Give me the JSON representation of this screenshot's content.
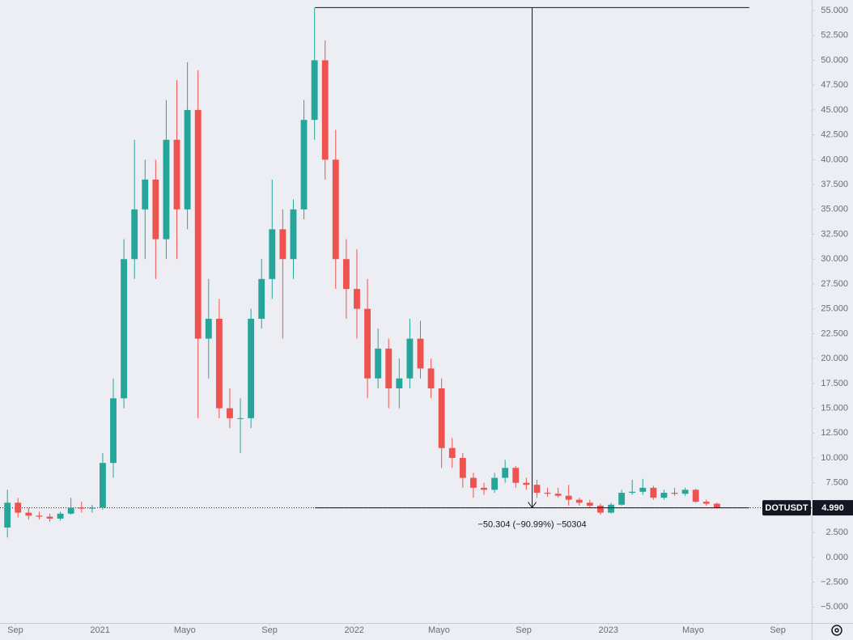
{
  "chart_data": {
    "type": "candlestick",
    "symbol": "DOTUSDT",
    "up_color": "#26a69a",
    "down_color": "#ef5350",
    "grid": false,
    "x": [
      -0.75,
      0.25,
      1.25,
      2.25,
      3.25,
      4.25,
      5.25,
      6.25,
      7.25,
      8.25,
      9.25,
      10.25,
      11.25,
      12.25,
      13.25,
      14.25,
      15.25,
      16.25,
      17.25,
      18.25,
      19.25,
      20.25,
      21.25,
      22.25,
      23.25,
      24.25,
      25.25,
      26.25,
      27.25,
      28.25,
      29.25,
      30.25,
      31.25,
      32.25,
      33.25,
      34.25,
      35.25,
      36.25,
      37.25,
      38.25,
      39.25,
      40.25,
      41.25,
      42.25,
      43.25,
      44.25,
      45.25,
      46.25,
      47.25,
      48.25,
      49.25,
      50.25,
      51.25,
      52.25,
      53.25,
      54.25,
      55.25,
      56.25,
      57.25,
      58.25,
      59.25,
      60.25,
      61.25,
      62.25,
      63.25,
      64.25,
      65.25,
      66.25
    ],
    "open": [
      3.0,
      5.5,
      4.5,
      4.2,
      4.1,
      3.9,
      4.4,
      5.0,
      4.9,
      5.0,
      9.5,
      16,
      30,
      35,
      38,
      32,
      42,
      35,
      45,
      22,
      24,
      15,
      14,
      14,
      24,
      28,
      33,
      30,
      35,
      44,
      50,
      40,
      30,
      27,
      25,
      18,
      21,
      17,
      18,
      22,
      19,
      17,
      11,
      10,
      8,
      7,
      6.8,
      8,
      9,
      7.5,
      7.3,
      6.5,
      6.4,
      6.2,
      5.8,
      5.5,
      5.2,
      4.5,
      5.3,
      6.5,
      6.6,
      7.0,
      6.0,
      6.5,
      6.4,
      6.8,
      5.6,
      5.4
    ],
    "high": [
      6.8,
      6.0,
      5.0,
      4.6,
      4.4,
      4.6,
      6.0,
      5.6,
      5.3,
      10.5,
      18,
      32,
      42,
      40,
      40,
      46,
      48,
      49.8,
      49,
      28,
      26,
      17,
      16,
      25,
      30,
      38,
      35,
      36,
      46,
      55.3,
      52,
      43,
      32,
      31,
      28,
      23,
      22,
      20,
      24,
      23.8,
      20,
      18,
      12,
      10.5,
      8.5,
      7.5,
      8.5,
      9.8,
      9.2,
      8,
      7.8,
      7,
      7,
      7.3,
      6,
      5.8,
      5.4,
      5.5,
      6.8,
      7.8,
      7.9,
      7.2,
      6.8,
      7.0,
      7.0,
      6.9,
      5.8,
      5.5
    ],
    "low": [
      2.0,
      4.0,
      3.8,
      3.8,
      3.6,
      3.7,
      4.3,
      4.5,
      4.5,
      4.8,
      8,
      15,
      28,
      30,
      28,
      30,
      30,
      33,
      14,
      18,
      14,
      13,
      10.5,
      13,
      23,
      26,
      22,
      28,
      34,
      42,
      38,
      27,
      24,
      22,
      16,
      17,
      15,
      15,
      17,
      18,
      16,
      9,
      9,
      7,
      6,
      6.3,
      6.5,
      7.5,
      7,
      6.8,
      6,
      6.1,
      6,
      5.2,
      5.2,
      5,
      4.3,
      4.4,
      5.2,
      6.3,
      6.3,
      5.8,
      5.8,
      6.2,
      6.2,
      5.5,
      5.2,
      4.9
    ],
    "close": [
      5.5,
      4.5,
      4.2,
      4.1,
      3.9,
      4.4,
      5.0,
      4.9,
      5.0,
      9.5,
      16,
      30,
      35,
      38,
      32,
      42,
      35,
      45,
      22,
      24,
      15,
      14,
      14,
      24,
      28,
      33,
      30,
      35,
      44,
      50,
      40,
      30,
      27,
      25,
      18,
      21,
      17,
      18,
      22,
      19,
      17,
      11,
      10,
      8,
      7,
      6.8,
      8,
      9,
      7.5,
      7.3,
      6.5,
      6.4,
      6.2,
      5.8,
      5.5,
      5.2,
      4.5,
      5.3,
      6.5,
      6.6,
      7.0,
      6.0,
      6.5,
      6.4,
      6.8,
      5.6,
      5.4,
      4.99
    ],
    "xlim": [
      -1.45,
      75.2
    ],
    "xticks": [
      {
        "value": 0,
        "label": "Sep"
      },
      {
        "value": 8,
        "label": "2021"
      },
      {
        "value": 16,
        "label": "Mayo"
      },
      {
        "value": 24,
        "label": "Sep"
      },
      {
        "value": 32,
        "label": "2022"
      },
      {
        "value": 40,
        "label": "Mayo"
      },
      {
        "value": 48,
        "label": "Sep"
      },
      {
        "value": 56,
        "label": "2023"
      },
      {
        "value": 64,
        "label": "Mayo"
      },
      {
        "value": 72,
        "label": "Sep"
      }
    ],
    "ylim": [
      -6.6,
      56.06
    ],
    "yticks": [
      {
        "value": -5,
        "label": "−5.000"
      },
      {
        "value": -2.5,
        "label": "−2.500"
      },
      {
        "value": 0,
        "label": "0.000"
      },
      {
        "value": 2.5,
        "label": "2.500"
      },
      {
        "value": 5,
        "label": "5.000"
      },
      {
        "value": 7.5,
        "label": "7.500"
      },
      {
        "value": 10,
        "label": "10.000"
      },
      {
        "value": 12.5,
        "label": "12.500"
      },
      {
        "value": 15,
        "label": "15.000"
      },
      {
        "value": 17.5,
        "label": "17.500"
      },
      {
        "value": 20,
        "label": "20.000"
      },
      {
        "value": 22.5,
        "label": "22.500"
      },
      {
        "value": 25,
        "label": "25.000"
      },
      {
        "value": 27.5,
        "label": "27.500"
      },
      {
        "value": 30,
        "label": "30.000"
      },
      {
        "value": 32.5,
        "label": "32.500"
      },
      {
        "value": 35,
        "label": "35.000"
      },
      {
        "value": 37.5,
        "label": "37.500"
      },
      {
        "value": 40,
        "label": "40.000"
      },
      {
        "value": 42.5,
        "label": "42.500"
      },
      {
        "value": 45,
        "label": "45.000"
      },
      {
        "value": 47.5,
        "label": "47.500"
      },
      {
        "value": 50,
        "label": "50.000"
      },
      {
        "value": 52.5,
        "label": "52.500"
      },
      {
        "value": 55,
        "label": "55.000"
      }
    ],
    "last_price": {
      "value": 4.99,
      "label": "4.990"
    },
    "measure": {
      "start": 55.294,
      "end": 4.99,
      "x_range": [
        28.3,
        69.3
      ],
      "label": "−50.304 (−90.99%) −50304"
    }
  }
}
